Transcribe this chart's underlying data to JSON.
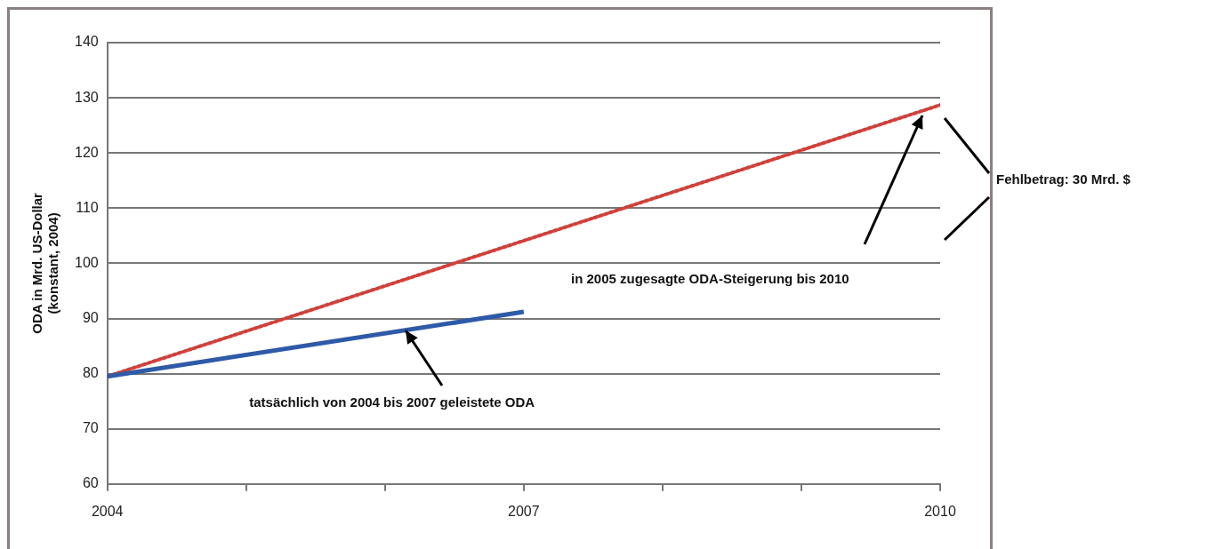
{
  "chart_data": {
    "type": "line",
    "ylabel": "ODA in Mrd. US-Dollar\n(konstant, 2004)",
    "series": [
      {
        "color": "#2e5aa8",
        "x": [
          2004,
          2007
        ],
        "values": [
          79.5,
          91.2
        ],
        "line_style": "solid"
      },
      {
        "color": "#d0403a",
        "x": [
          2004,
          2010
        ],
        "values": [
          79.5,
          128.7
        ],
        "line_style": "dotted"
      }
    ],
    "xlim": [
      2004,
      2010
    ],
    "xticks": [
      2004,
      {
        "value": 2005,
        "label": null
      },
      {
        "value": 2006,
        "label": null
      },
      2007,
      {
        "value": 2008,
        "label": null
      },
      {
        "value": 2009,
        "label": null
      },
      2010
    ],
    "ylim": [
      60,
      140
    ],
    "yticks": [
      60,
      70,
      80,
      90,
      100,
      110,
      120,
      130,
      140
    ],
    "grid": "y",
    "legend": false,
    "marker": "none",
    "annotations": [
      "Fehlbetrag: 30 Mrd. $",
      "in 2005 zugesagte ODA-Steigerung bis 2010",
      {
        "text": "tatsächlich von 2004 bis 2007 geleistete ODA",
        "x": 2006.15,
        "y": 87.9
      }
    ]
  }
}
